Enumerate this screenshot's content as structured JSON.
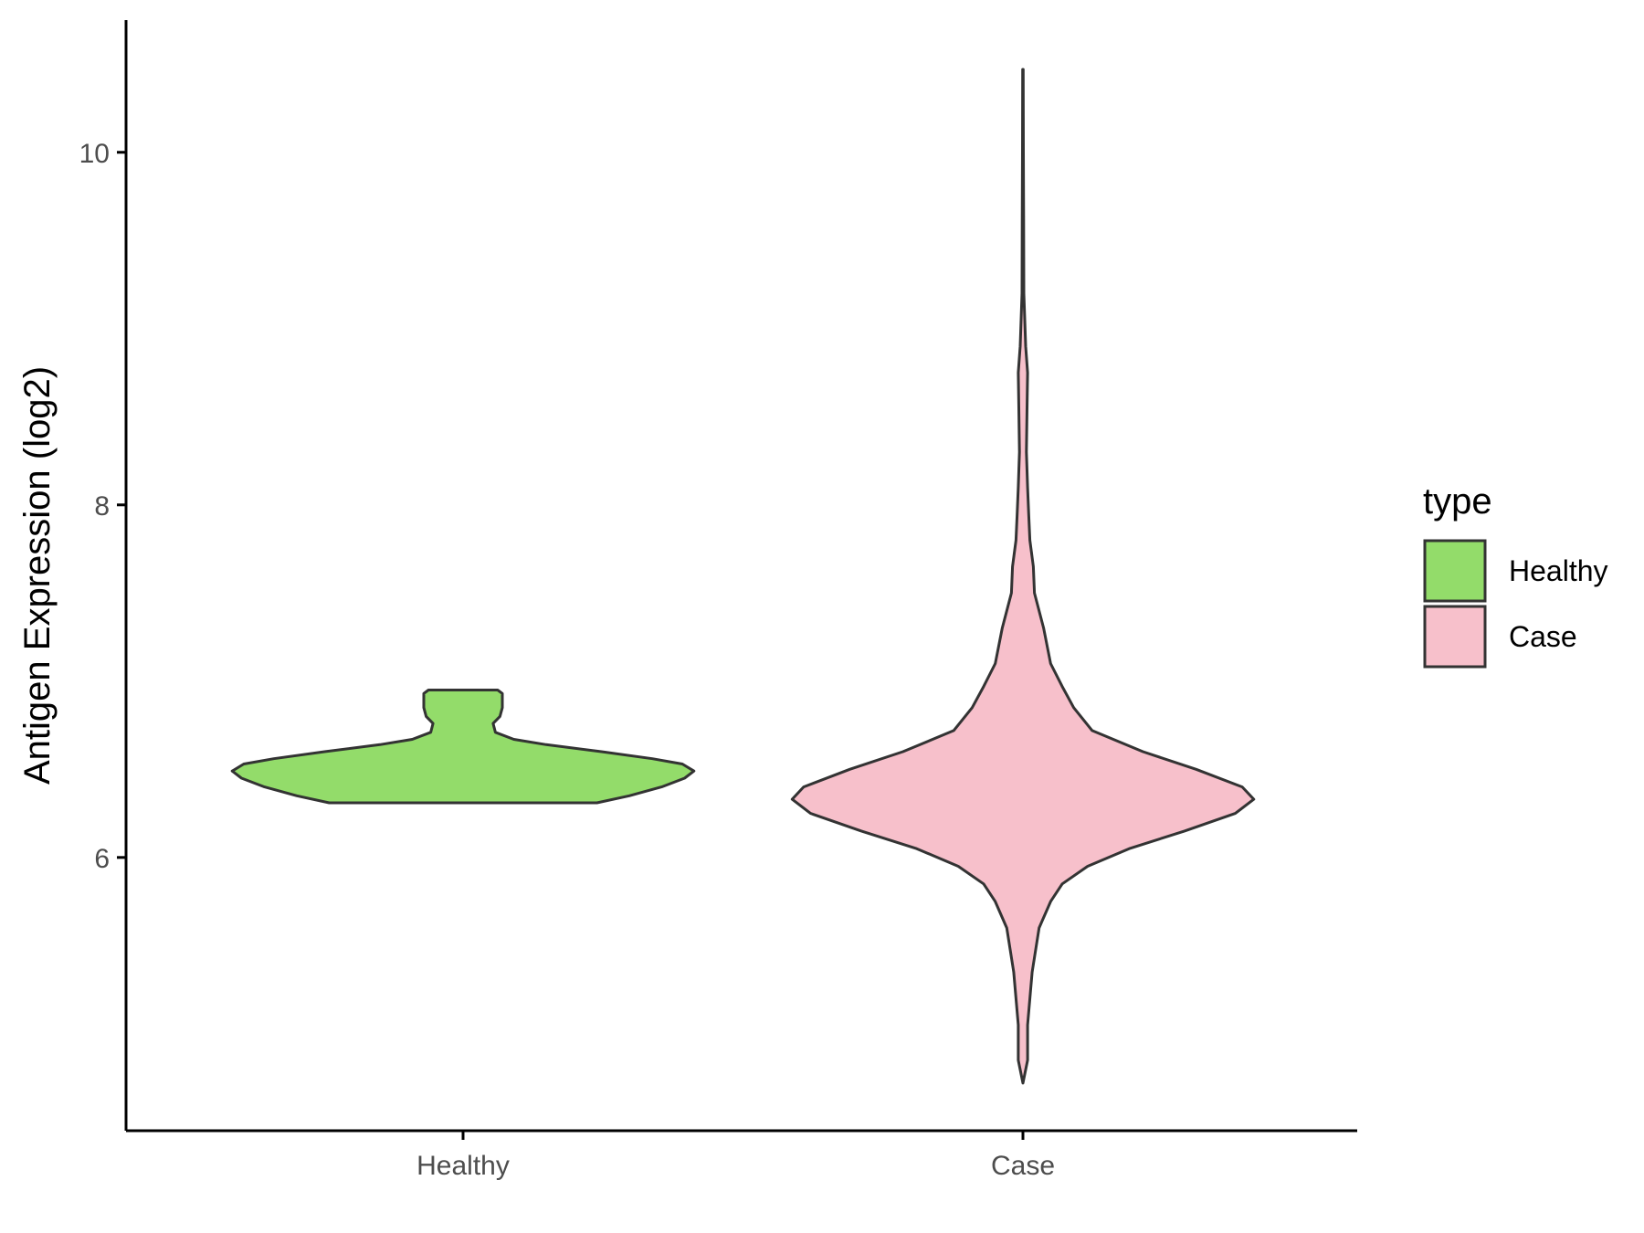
{
  "chart_data": {
    "type": "violin",
    "ylabel": "Antigen Expression (log2)",
    "ylim": [
      4.45,
      10.75
    ],
    "y_ticks": [
      6,
      8,
      10
    ],
    "categories": [
      "Healthy",
      "Case"
    ],
    "legend": {
      "title": "type",
      "position": "right",
      "entries": [
        {
          "label": "Healthy",
          "color": "#93DC6A"
        },
        {
          "label": "Case",
          "color": "#F7C0CB"
        }
      ]
    },
    "grid": false,
    "series": [
      {
        "name": "Healthy",
        "color": "#93DC6A",
        "y_range": [
          6.31,
          6.95
        ],
        "profile": [
          [
            6.31,
            0.58
          ],
          [
            6.35,
            0.72
          ],
          [
            6.4,
            0.86
          ],
          [
            6.45,
            0.96
          ],
          [
            6.49,
            1.0
          ],
          [
            6.53,
            0.95
          ],
          [
            6.56,
            0.82
          ],
          [
            6.6,
            0.6
          ],
          [
            6.64,
            0.36
          ],
          [
            6.67,
            0.22
          ],
          [
            6.71,
            0.14
          ],
          [
            6.76,
            0.13
          ],
          [
            6.8,
            0.16
          ],
          [
            6.85,
            0.17
          ],
          [
            6.9,
            0.17
          ],
          [
            6.93,
            0.17
          ],
          [
            6.95,
            0.15
          ]
        ]
      },
      {
        "name": "Case",
        "color": "#F7C0CB",
        "y_range": [
          4.72,
          10.47
        ],
        "profile": [
          [
            4.72,
            0.0
          ],
          [
            4.85,
            0.02
          ],
          [
            5.05,
            0.02
          ],
          [
            5.35,
            0.04
          ],
          [
            5.6,
            0.07
          ],
          [
            5.75,
            0.12
          ],
          [
            5.85,
            0.17
          ],
          [
            5.95,
            0.28
          ],
          [
            6.05,
            0.46
          ],
          [
            6.15,
            0.7
          ],
          [
            6.25,
            0.92
          ],
          [
            6.33,
            1.0
          ],
          [
            6.4,
            0.95
          ],
          [
            6.5,
            0.75
          ],
          [
            6.6,
            0.52
          ],
          [
            6.72,
            0.3
          ],
          [
            6.85,
            0.22
          ],
          [
            6.97,
            0.17
          ],
          [
            7.1,
            0.12
          ],
          [
            7.3,
            0.09
          ],
          [
            7.5,
            0.05
          ],
          [
            7.65,
            0.045
          ],
          [
            7.8,
            0.03
          ],
          [
            7.95,
            0.025
          ],
          [
            8.1,
            0.02
          ],
          [
            8.3,
            0.015
          ],
          [
            8.55,
            0.018
          ],
          [
            8.75,
            0.02
          ],
          [
            8.9,
            0.012
          ],
          [
            9.2,
            0.004
          ],
          [
            9.6,
            0.003
          ],
          [
            10.0,
            0.002
          ],
          [
            10.47,
            0.001
          ]
        ]
      }
    ]
  }
}
